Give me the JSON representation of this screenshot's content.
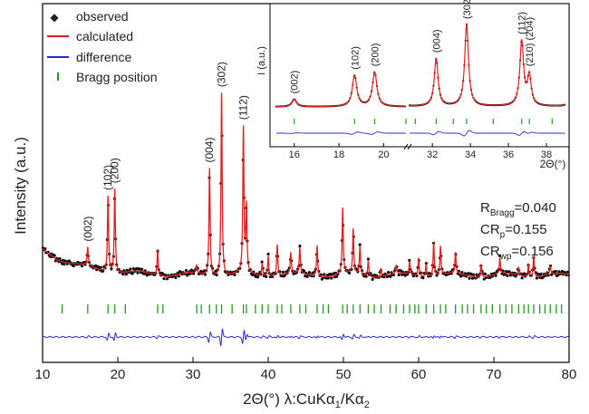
{
  "chart_data": [
    {
      "type": "line",
      "role": "main",
      "xlabel_parts": [
        "2Θ(°)  λ:CuKα",
        "1",
        "/Kα",
        "2"
      ],
      "ylabel": "Intensity (a.u.)",
      "xlim": [
        10,
        80
      ],
      "x_ticks": [
        10,
        20,
        30,
        40,
        50,
        60,
        70,
        80
      ],
      "legend_position": "top-left",
      "legend": [
        {
          "marker": "diamond",
          "label": "observed",
          "color": "#000000"
        },
        {
          "marker": "line",
          "label": "calculated",
          "color": "#e02020"
        },
        {
          "marker": "line",
          "label": "difference",
          "color": "#2a2ad0"
        },
        {
          "marker": "tick",
          "label": "Bragg position",
          "color": "#1f9a1f"
        }
      ],
      "stats": [
        {
          "label": "R",
          "sub": "Bragg",
          "value": "=0.040"
        },
        {
          "label": "CR",
          "sub": "p",
          "value": "=0.155"
        },
        {
          "label": "CR",
          "sub": "wp",
          "value": "=0.156"
        }
      ],
      "peaks": [
        {
          "x": 16.0,
          "height": 0.07,
          "label": "(002)"
        },
        {
          "x": 18.7,
          "height": 0.29,
          "label": "(102)"
        },
        {
          "x": 19.6,
          "height": 0.32,
          "label": "(200)"
        },
        {
          "x": 25.3,
          "height": 0.1
        },
        {
          "x": 30.5,
          "height": 0.03
        },
        {
          "x": 32.2,
          "height": 0.41,
          "label": "(004)"
        },
        {
          "x": 33.8,
          "height": 0.7,
          "label": "(302)"
        },
        {
          "x": 36.7,
          "height": 0.55,
          "label": "(112)"
        },
        {
          "x": 37.1,
          "height": 0.25
        },
        {
          "x": 39.2,
          "height": 0.05
        },
        {
          "x": 40.0,
          "height": 0.08
        },
        {
          "x": 41.2,
          "height": 0.12
        },
        {
          "x": 43.0,
          "height": 0.08
        },
        {
          "x": 44.2,
          "height": 0.1
        },
        {
          "x": 46.5,
          "height": 0.12
        },
        {
          "x": 49.9,
          "height": 0.25
        },
        {
          "x": 51.3,
          "height": 0.17
        },
        {
          "x": 52.2,
          "height": 0.11
        },
        {
          "x": 53.3,
          "height": 0.06
        },
        {
          "x": 55.0,
          "height": 0.03
        },
        {
          "x": 57.0,
          "height": 0.03
        },
        {
          "x": 58.8,
          "height": 0.05
        },
        {
          "x": 60.0,
          "height": 0.07
        },
        {
          "x": 61.0,
          "height": 0.05
        },
        {
          "x": 62.0,
          "height": 0.13
        },
        {
          "x": 62.9,
          "height": 0.11
        },
        {
          "x": 64.9,
          "height": 0.08
        },
        {
          "x": 68.3,
          "height": 0.05
        },
        {
          "x": 70.8,
          "height": 0.06
        },
        {
          "x": 73.3,
          "height": 0.03
        },
        {
          "x": 74.6,
          "height": 0.05
        },
        {
          "x": 75.3,
          "height": 0.08
        },
        {
          "x": 77.5,
          "height": 0.03
        }
      ],
      "bragg_positions": [
        12.6,
        16.0,
        18.7,
        19.6,
        21.0,
        25.3,
        26.0,
        30.5,
        31.1,
        32.2,
        33.1,
        33.8,
        35.2,
        36.7,
        37.1,
        38.3,
        39.2,
        40.0,
        41.2,
        41.8,
        43.0,
        44.2,
        45.0,
        46.5,
        47.3,
        48.0,
        49.9,
        50.5,
        51.3,
        52.2,
        53.3,
        54.1,
        55.0,
        56.2,
        57.0,
        58.0,
        58.8,
        59.5,
        60.0,
        61.0,
        62.0,
        62.9,
        63.6,
        64.9,
        65.8,
        66.5,
        67.3,
        68.3,
        69.0,
        69.8,
        70.8,
        71.6,
        72.4,
        73.3,
        74.0,
        74.6,
        75.3,
        76.1,
        76.8,
        77.5,
        78.3,
        79.0
      ]
    },
    {
      "type": "line",
      "role": "inset",
      "ylabel": "I (a.u.)",
      "xlabel": "2Θ(°)",
      "x_ticks": [
        16,
        18,
        20,
        32,
        34,
        36,
        38
      ],
      "peak_labels": [
        {
          "x": 16.0,
          "label": "(002)"
        },
        {
          "x": 18.7,
          "label": "(102)"
        },
        {
          "x": 19.6,
          "label": "(200)"
        },
        {
          "x": 32.2,
          "label": "(004)"
        },
        {
          "x": 33.8,
          "label": "(302)"
        },
        {
          "x": 36.7,
          "label": "(112)"
        },
        {
          "x": 37.1,
          "label": "(210) (204)"
        }
      ]
    }
  ]
}
